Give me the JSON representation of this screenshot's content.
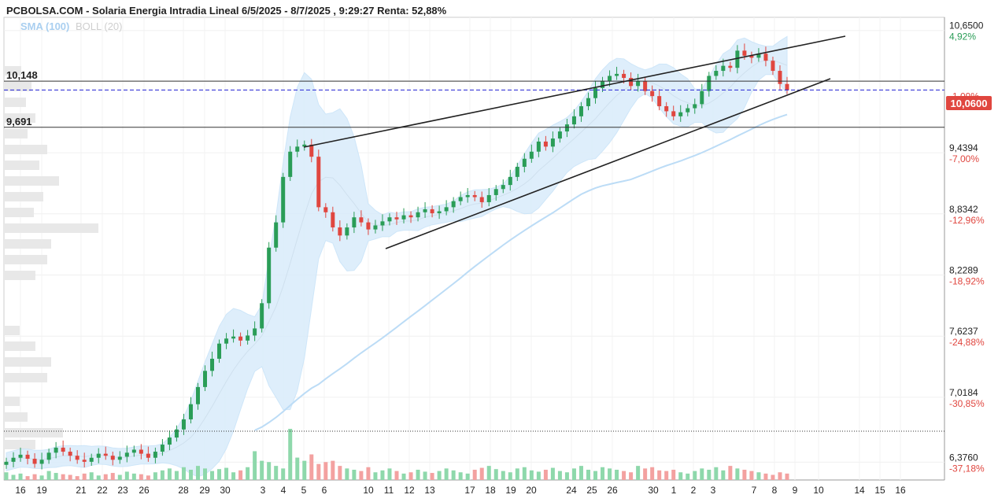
{
  "title": "PCBOLSA.COM - Solaria Energia Intradia Lineal 6/5/2025 - 8/7/2025 , 9:29:27 Renta: 52,88%",
  "indicators": {
    "sma": "SMA (100)",
    "boll": "BOLL (20)"
  },
  "price_axis": [
    {
      "price": "10,6500",
      "pct": "4,92%",
      "sign": "pos"
    },
    {
      "price": "10,0600",
      "pct": "-1,09%",
      "sign": "neg",
      "current": true
    },
    {
      "price": "9,4394",
      "pct": "-7,00%",
      "sign": "neg"
    },
    {
      "price": "8,8342",
      "pct": "-12,96%",
      "sign": "neg"
    },
    {
      "price": "8,2289",
      "pct": "-18,92%",
      "sign": "neg"
    },
    {
      "price": "7,6237",
      "pct": "-24,88%",
      "sign": "neg"
    },
    {
      "price": "7,0184",
      "pct": "-30,85%",
      "sign": "neg"
    },
    {
      "price": "6,3760",
      "pct": "-37,18%",
      "sign": "neg"
    }
  ],
  "levels": [
    {
      "label": "10,148",
      "value": 10.148
    },
    {
      "label": "9,691",
      "value": 9.691
    }
  ],
  "colors": {
    "up": "#2a9d57",
    "down": "#e0463f",
    "band": "#d9ecfb",
    "sma": "#bcdcf6",
    "current": "#3a3ad8",
    "badge": "#e0463f"
  },
  "chart_data": {
    "type": "candlestick",
    "ylim": [
      6.2,
      10.78
    ],
    "x_tick_labels": [
      "16",
      "19",
      "21",
      "22",
      "23",
      "26",
      "28",
      "29",
      "30",
      "3",
      "4",
      "5",
      "6",
      "10",
      "11",
      "12",
      "13",
      "17",
      "18",
      "19",
      "20",
      "24",
      "25",
      "26",
      "30",
      "1",
      "2",
      "3",
      "7",
      "8",
      "9",
      "10",
      "14",
      "15",
      "16"
    ],
    "current_price": 10.06,
    "closes": [
      6.38,
      6.42,
      6.45,
      6.41,
      6.36,
      6.4,
      6.47,
      6.52,
      6.48,
      6.44,
      6.4,
      6.38,
      6.42,
      6.46,
      6.44,
      6.4,
      6.43,
      6.47,
      6.5,
      6.46,
      6.42,
      6.48,
      6.55,
      6.62,
      6.7,
      6.8,
      6.95,
      7.12,
      7.28,
      7.4,
      7.55,
      7.6,
      7.62,
      7.58,
      7.63,
      7.7,
      7.95,
      8.5,
      8.75,
      9.2,
      9.45,
      9.5,
      9.52,
      9.4,
      8.9,
      8.85,
      8.7,
      8.62,
      8.7,
      8.8,
      8.75,
      8.68,
      8.72,
      8.76,
      8.8,
      8.78,
      8.82,
      8.8,
      8.85,
      8.88,
      8.84,
      8.86,
      8.9,
      8.96,
      9.0,
      9.02,
      9.0,
      8.95,
      9.02,
      9.08,
      9.12,
      9.2,
      9.3,
      9.38,
      9.45,
      9.55,
      9.5,
      9.58,
      9.65,
      9.72,
      9.8,
      9.9,
      9.98,
      10.08,
      10.15,
      10.2,
      10.22,
      10.18,
      10.1,
      10.15,
      10.05,
      10.0,
      9.9,
      9.85,
      9.8,
      9.84,
      9.88,
      9.92,
      10.05,
      10.2,
      10.25,
      10.3,
      10.28,
      10.45,
      10.4,
      10.38,
      10.42,
      10.35,
      10.25,
      10.12,
      10.06
    ],
    "volumes": [
      12,
      8,
      10,
      6,
      9,
      7,
      14,
      11,
      9,
      8,
      6,
      10,
      12,
      7,
      9,
      11,
      8,
      13,
      10,
      9,
      7,
      12,
      15,
      18,
      14,
      20,
      16,
      22,
      18,
      14,
      17,
      19,
      12,
      15,
      20,
      45,
      30,
      28,
      22,
      18,
      80,
      35,
      30,
      40,
      25,
      28,
      30,
      22,
      18,
      16,
      14,
      20,
      12,
      15,
      18,
      14,
      10,
      12,
      16,
      13,
      11,
      14,
      18,
      15,
      12,
      10,
      16,
      19,
      22,
      17,
      14,
      12,
      18,
      20,
      15,
      13,
      16,
      19,
      14,
      12,
      18,
      22,
      16,
      14,
      20,
      18,
      16,
      14,
      12,
      22,
      18,
      20,
      15,
      14,
      16,
      12,
      10,
      14,
      18,
      16,
      20,
      15,
      22,
      18,
      16,
      14,
      12,
      10,
      8,
      12,
      10,
      9,
      8
    ]
  }
}
